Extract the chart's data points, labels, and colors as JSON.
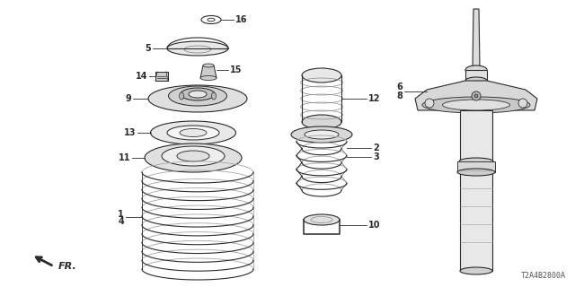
{
  "background_color": "#ffffff",
  "diagram_code": "T2A4B2800A",
  "fr_label": "FR.",
  "line_color": "#2a2a2a",
  "gray": "#888888"
}
